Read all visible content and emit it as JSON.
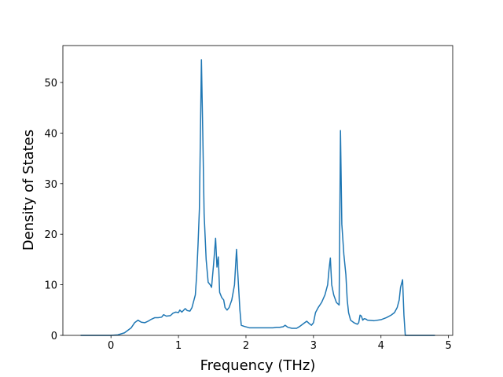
{
  "chart_data": {
    "type": "line",
    "xlabel": "Frequency (THz)",
    "ylabel": "Density of States",
    "x": [
      -0.45,
      0,
      0.1,
      0.2,
      0.3,
      0.35,
      0.4,
      0.45,
      0.5,
      0.55,
      0.6,
      0.65,
      0.7,
      0.75,
      0.78,
      0.82,
      0.88,
      0.92,
      0.96,
      1.0,
      1.02,
      1.05,
      1.1,
      1.13,
      1.17,
      1.2,
      1.25,
      1.27,
      1.29,
      1.31,
      1.34,
      1.36,
      1.38,
      1.41,
      1.44,
      1.47,
      1.49,
      1.52,
      1.55,
      1.57,
      1.59,
      1.61,
      1.64,
      1.67,
      1.69,
      1.72,
      1.75,
      1.79,
      1.83,
      1.86,
      1.88,
      1.91,
      1.93,
      1.97,
      2.05,
      2.2,
      2.3,
      2.4,
      2.45,
      2.5,
      2.55,
      2.58,
      2.62,
      2.68,
      2.75,
      2.8,
      2.87,
      2.9,
      2.94,
      2.97,
      3.0,
      3.03,
      3.07,
      3.12,
      3.17,
      3.21,
      3.23,
      3.25,
      3.27,
      3.3,
      3.34,
      3.38,
      3.4,
      3.42,
      3.45,
      3.48,
      3.5,
      3.52,
      3.55,
      3.6,
      3.65,
      3.67,
      3.69,
      3.71,
      3.73,
      3.75,
      3.78,
      3.8,
      3.9,
      4.0,
      4.08,
      4.15,
      4.2,
      4.24,
      4.27,
      4.29,
      4.32,
      4.34,
      4.36,
      4.8
    ],
    "values": [
      0,
      0,
      0.1,
      0.5,
      1.5,
      2.5,
      3,
      2.6,
      2.5,
      2.8,
      3.2,
      3.5,
      3.5,
      3.6,
      4.1,
      3.8,
      3.9,
      4.4,
      4.6,
      4.5,
      5,
      4.6,
      5.3,
      4.9,
      4.8,
      5.5,
      8,
      12,
      18,
      25,
      54.5,
      40,
      24,
      15,
      10.5,
      10,
      9.5,
      14,
      19.2,
      13.5,
      15.5,
      8.5,
      7.5,
      7,
      5.5,
      5,
      5.5,
      7,
      10,
      17,
      12,
      5,
      2,
      1.8,
      1.5,
      1.5,
      1.5,
      1.5,
      1.6,
      1.6,
      1.7,
      2,
      1.6,
      1.4,
      1.4,
      1.8,
      2.5,
      2.8,
      2.3,
      2,
      2.5,
      4.5,
      5.5,
      6.5,
      8,
      10,
      13,
      15.3,
      10,
      8,
      6.5,
      6,
      40.5,
      22,
      16,
      12,
      7,
      4.5,
      3,
      2.5,
      2.2,
      2.5,
      4,
      3.8,
      3,
      3.3,
      3.2,
      3,
      2.9,
      3.1,
      3.5,
      4,
      4.5,
      5.5,
      7,
      9.5,
      11,
      4,
      0,
      0
    ],
    "color": "#1f77b4",
    "xlim": [
      -0.7125,
      5.0625
    ],
    "xticks": [
      0,
      1,
      2,
      3,
      4,
      5
    ],
    "ylim": [
      0,
      57.3
    ],
    "yticks": [
      0,
      10,
      20,
      30,
      40,
      50
    ]
  }
}
